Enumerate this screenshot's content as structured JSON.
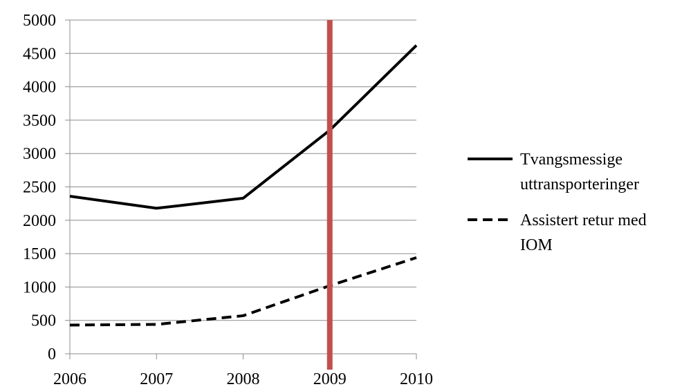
{
  "chart_data": {
    "type": "line",
    "x": [
      2006,
      2007,
      2008,
      2009,
      2010
    ],
    "series": [
      {
        "name": "Tvangsmessige uttransporteringer",
        "name_lines": [
          "Tvangsmessige",
          "uttransporteringer"
        ],
        "values": [
          2360,
          2180,
          2330,
          3350,
          4620
        ],
        "style": "solid",
        "color": "#000000"
      },
      {
        "name": "Assistert retur med IOM",
        "name_lines": [
          "Assistert retur med",
          "IOM"
        ],
        "values": [
          430,
          440,
          570,
          1020,
          1440
        ],
        "style": "dashed",
        "color": "#000000"
      }
    ],
    "ylim": [
      0,
      5000
    ],
    "xlim": [
      2006,
      2010
    ],
    "y_ticks": [
      "0",
      "500",
      "1000",
      "1500",
      "2000",
      "2500",
      "3000",
      "3500",
      "4000",
      "4500",
      "5000"
    ],
    "x_ticks": [
      "2006",
      "2007",
      "2008",
      "2009",
      "2010"
    ],
    "grid": "horizontal",
    "legend_position": "right",
    "marker_line": {
      "x": 2009,
      "color": "#c0504d"
    },
    "title": "",
    "xlabel": "",
    "ylabel": ""
  }
}
